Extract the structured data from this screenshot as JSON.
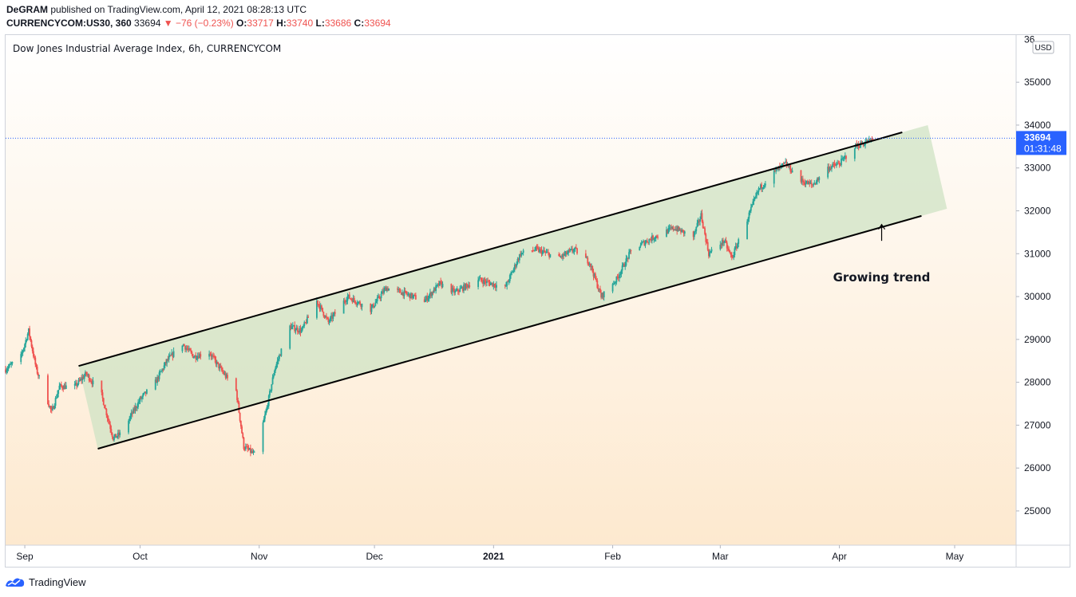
{
  "header": {
    "author": "DeGRAM",
    "published_text": "published on TradingView.com, April 12, 2021 08:28:13 UTC",
    "symbol": "CURRENCYCOM:US30, 360",
    "last": "33694",
    "change": "▼ −76 (−0.23%)",
    "o_label": "O:",
    "o_value": "33717",
    "h_label": "H:",
    "h_value": "33740",
    "l_label": "L:",
    "l_value": "33686",
    "c_label": "C:",
    "c_value": "33694"
  },
  "footer": {
    "brand": "TradingView",
    "logo_icon": "tradingview-logo-icon"
  },
  "colors": {
    "up": "#26a69a",
    "down": "#ef5350",
    "channel_fill": "#cfe3c4",
    "price_tag": "#2962ff",
    "trend_line": "#000000"
  },
  "chart_data": {
    "type": "candlestick",
    "title": "Dow Jones Industrial Average Index, 6h, CURRENCYCOM",
    "currency": "USD",
    "ylim": [
      24200,
      36100
    ],
    "y_ticks": [
      25000,
      26000,
      27000,
      28000,
      29000,
      30000,
      31000,
      32000,
      33000,
      34000,
      35000
    ],
    "y_tick_top_partial": "36",
    "x_ticks": [
      {
        "label": "Sep",
        "date": "2020-09-01",
        "bold": false
      },
      {
        "label": "Oct",
        "date": "2020-10-01",
        "bold": false
      },
      {
        "label": "Nov",
        "date": "2020-11-01",
        "bold": false
      },
      {
        "label": "Dec",
        "date": "2020-12-01",
        "bold": false
      },
      {
        "label": "2021",
        "date": "2021-01-01",
        "bold": true
      },
      {
        "label": "Feb",
        "date": "2021-02-01",
        "bold": false
      },
      {
        "label": "Mar",
        "date": "2021-03-01",
        "bold": false
      },
      {
        "label": "Apr",
        "date": "2021-04-01",
        "bold": false
      },
      {
        "label": "May",
        "date": "2021-05-01",
        "bold": false
      }
    ],
    "xlim": [
      "2020-08-27",
      "2021-05-17"
    ],
    "last_price": 33694,
    "last_price_label": "33694",
    "countdown_label": "01:31:48",
    "price_path": [
      [
        "2020-08-27",
        28300
      ],
      [
        "2020-08-31",
        28600
      ],
      [
        "2020-09-02",
        29200
      ],
      [
        "2020-09-04",
        28300
      ],
      [
        "2020-09-08",
        27300
      ],
      [
        "2020-09-10",
        27900
      ],
      [
        "2020-09-14",
        27900
      ],
      [
        "2020-09-17",
        28200
      ],
      [
        "2020-09-21",
        27700
      ],
      [
        "2020-09-24",
        26700
      ],
      [
        "2020-09-26",
        26800
      ],
      [
        "2020-10-01",
        27600
      ],
      [
        "2020-10-05",
        28000
      ],
      [
        "2020-10-08",
        28500
      ],
      [
        "2020-10-12",
        28900
      ],
      [
        "2020-10-15",
        28600
      ],
      [
        "2020-10-19",
        28700
      ],
      [
        "2020-10-22",
        28300
      ],
      [
        "2020-10-26",
        27800
      ],
      [
        "2020-10-28",
        26500
      ],
      [
        "2020-10-31",
        26300
      ],
      [
        "2020-11-03",
        27400
      ],
      [
        "2020-11-05",
        28300
      ],
      [
        "2020-11-09",
        29300
      ],
      [
        "2020-11-12",
        29200
      ],
      [
        "2020-11-16",
        29900
      ],
      [
        "2020-11-19",
        29400
      ],
      [
        "2020-11-24",
        30000
      ],
      [
        "2020-11-30",
        29700
      ],
      [
        "2020-12-04",
        30200
      ],
      [
        "2020-12-08",
        30100
      ],
      [
        "2020-12-14",
        29900
      ],
      [
        "2020-12-18",
        30300
      ],
      [
        "2020-12-22",
        30100
      ],
      [
        "2020-12-28",
        30400
      ],
      [
        "2021-01-04",
        30200
      ],
      [
        "2021-01-08",
        31000
      ],
      [
        "2021-01-12",
        31100
      ],
      [
        "2021-01-18",
        30900
      ],
      [
        "2021-01-22",
        31100
      ],
      [
        "2021-01-26",
        30800
      ],
      [
        "2021-01-29",
        30000
      ],
      [
        "2021-02-02",
        30400
      ],
      [
        "2021-02-06",
        31100
      ],
      [
        "2021-02-12",
        31400
      ],
      [
        "2021-02-17",
        31600
      ],
      [
        "2021-02-22",
        31400
      ],
      [
        "2021-02-24",
        31900
      ],
      [
        "2021-02-26",
        31000
      ],
      [
        "2021-03-02",
        31300
      ],
      [
        "2021-03-04",
        30900
      ],
      [
        "2021-03-08",
        31800
      ],
      [
        "2021-03-11",
        32500
      ],
      [
        "2021-03-15",
        32900
      ],
      [
        "2021-03-18",
        33100
      ],
      [
        "2021-03-22",
        32700
      ],
      [
        "2021-03-25",
        32600
      ],
      [
        "2021-03-29",
        33000
      ],
      [
        "2021-04-01",
        33100
      ],
      [
        "2021-04-05",
        33500
      ],
      [
        "2021-04-08",
        33600
      ],
      [
        "2021-04-11",
        33694
      ]
    ],
    "channel_upper": [
      [
        "2020-09-15",
        28380
      ],
      [
        "2021-04-24",
        34000
      ]
    ],
    "channel_lower": [
      [
        "2020-09-20",
        26450
      ],
      [
        "2021-04-29",
        32050
      ]
    ],
    "annotation": {
      "text": "Growing trend",
      "arrow_date": "2021-04-12",
      "arrow_from": 31300,
      "arrow_to": 31680,
      "text_value": 30350
    }
  }
}
